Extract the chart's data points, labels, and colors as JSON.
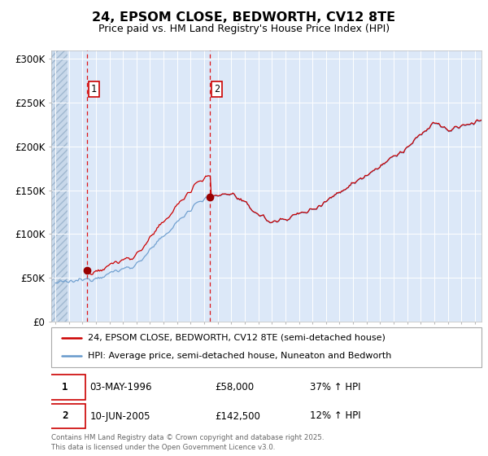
{
  "title": "24, EPSOM CLOSE, BEDWORTH, CV12 8TE",
  "subtitle": "Price paid vs. HM Land Registry's House Price Index (HPI)",
  "ylabel_ticks": [
    "£0",
    "£50K",
    "£100K",
    "£150K",
    "£200K",
    "£250K",
    "£300K"
  ],
  "ytick_values": [
    0,
    50000,
    100000,
    150000,
    200000,
    250000,
    300000
  ],
  "ylim": [
    0,
    310000
  ],
  "xlim_start": 1993.7,
  "xlim_end": 2025.5,
  "legend_line1": "24, EPSOM CLOSE, BEDWORTH, CV12 8TE (semi-detached house)",
  "legend_line2": "HPI: Average price, semi-detached house, Nuneaton and Bedworth",
  "sale1_date": "03-MAY-1996",
  "sale1_price": "£58,000",
  "sale1_hpi": "37% ↑ HPI",
  "sale1_year": 1996.35,
  "sale1_value": 58000,
  "sale2_date": "10-JUN-2005",
  "sale2_price": "£142,500",
  "sale2_hpi": "12% ↑ HPI",
  "sale2_year": 2005.44,
  "sale2_value": 142500,
  "footer": "Contains HM Land Registry data © Crown copyright and database right 2025.\nThis data is licensed under the Open Government Licence v3.0.",
  "hatch_color": "#c8d4e8",
  "bg_color": "#dce8f8",
  "line_color_red": "#cc0000",
  "line_color_blue": "#6699cc",
  "marker_color_red": "#990000"
}
